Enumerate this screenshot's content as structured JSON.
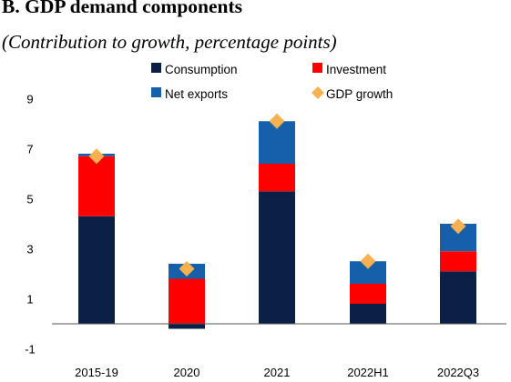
{
  "chart_data": {
    "type": "bar",
    "stacked": true,
    "title": "B. GDP demand components",
    "subtitle": "(Contribution to growth, percentage points)",
    "categories": [
      "2015-19",
      "2020",
      "2021",
      "2022H1",
      "2022Q3"
    ],
    "series": [
      {
        "name": "Consumption",
        "color": "#0c1f45",
        "values": [
          4.3,
          -0.2,
          5.3,
          0.8,
          2.1
        ]
      },
      {
        "name": "Investment",
        "color": "#ff0000",
        "values": [
          2.4,
          1.8,
          1.1,
          0.8,
          0.8
        ]
      },
      {
        "name": "Net exports",
        "color": "#1560a8",
        "values": [
          0.1,
          0.6,
          1.7,
          0.9,
          1.1
        ]
      }
    ],
    "markers": {
      "name": "GDP growth",
      "color": "#f7b151",
      "values": [
        6.7,
        2.2,
        8.1,
        2.5,
        3.9
      ]
    },
    "yticks": [
      9,
      7,
      5,
      3,
      1,
      -1
    ],
    "ylim": [
      -1.3,
      9.8
    ],
    "legend_placement": "top"
  }
}
